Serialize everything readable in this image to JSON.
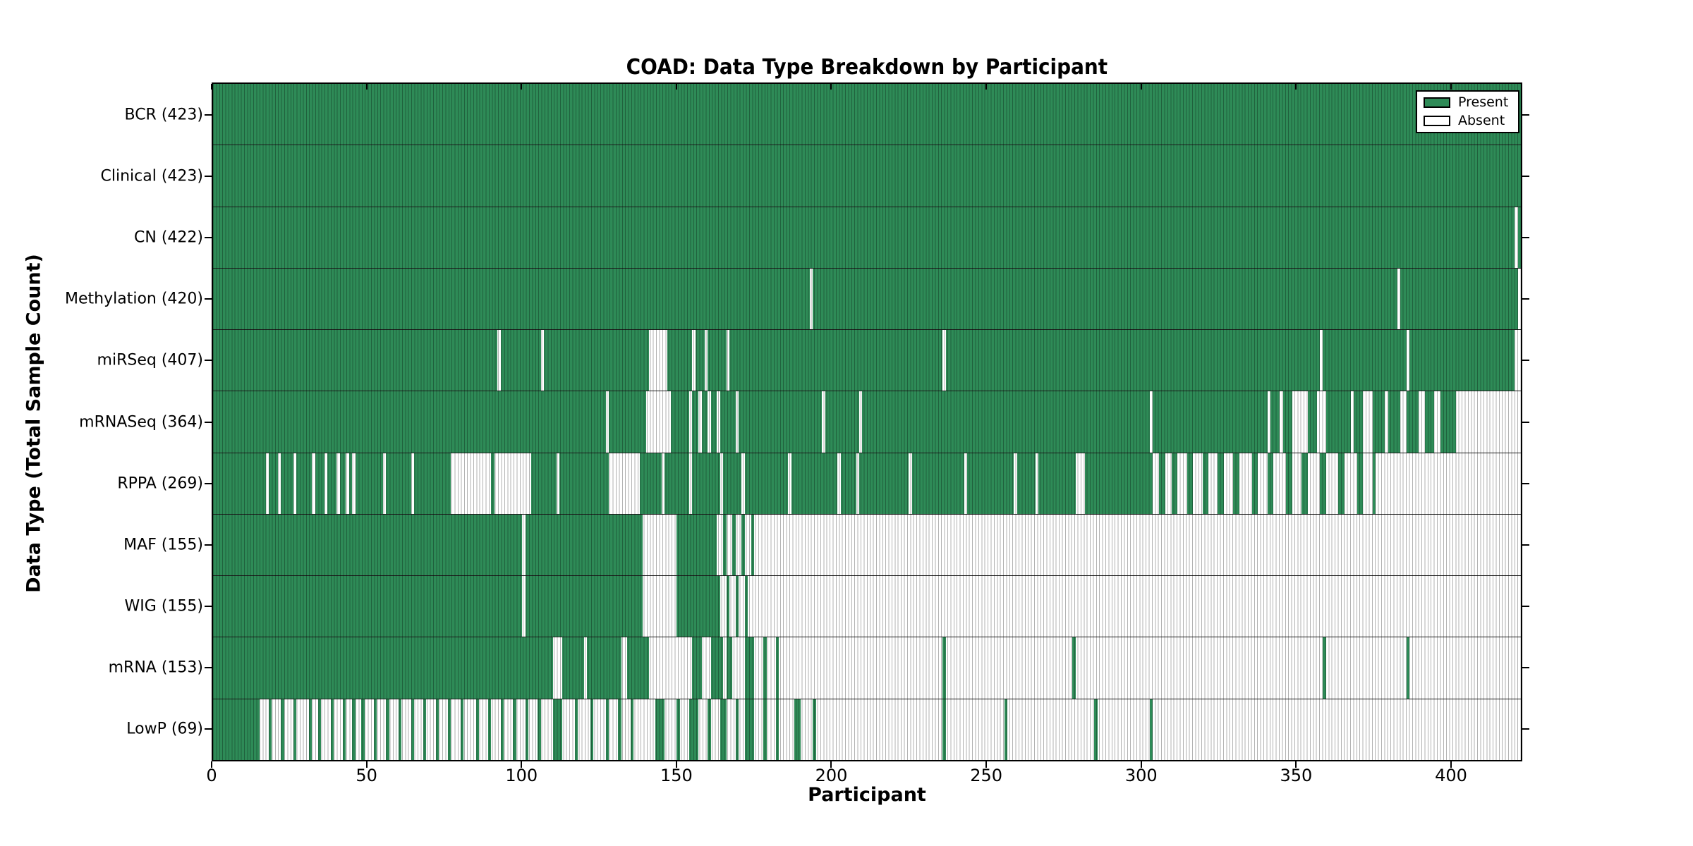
{
  "figure": {
    "background": "#ffffff",
    "present_color": "#2E8B57",
    "absent_color": "#ffffff",
    "edge_line_color": "rgba(0,0,0,0.30)"
  },
  "legend": {
    "present_label": "Present",
    "absent_label": "Absent"
  },
  "chart_data": {
    "type": "heatmap",
    "title": "COAD: Data Type Breakdown by Participant",
    "xlabel": "Participant",
    "ylabel": "Data Type (Total Sample Count)",
    "x_range": [
      0,
      423
    ],
    "x_ticks": [
      0,
      50,
      100,
      150,
      200,
      250,
      300,
      350,
      400
    ],
    "grid": false,
    "legend_position": "upper right",
    "legend_entries": [
      {
        "label": "Present",
        "color": "#2E8B57"
      },
      {
        "label": "Absent",
        "color": "#ffffff"
      }
    ],
    "value_encoding": "present_ranges are [start,end) participant index intervals shown as green (Present); all other participants in the row are white (Absent)",
    "rows": [
      {
        "label": "BCR (423)",
        "data_type": "BCR",
        "count": 423,
        "present_ranges": [
          [
            0,
            423
          ]
        ]
      },
      {
        "label": "Clinical (423)",
        "data_type": "Clinical",
        "count": 423,
        "present_ranges": [
          [
            0,
            423
          ]
        ]
      },
      {
        "label": "CN (422)",
        "data_type": "CN",
        "count": 422,
        "present_ranges": [
          [
            0,
            421
          ],
          [
            422,
            423
          ]
        ]
      },
      {
        "label": "Methylation (420)",
        "data_type": "Methylation",
        "count": 420,
        "present_ranges": [
          [
            0,
            193
          ],
          [
            194,
            383
          ],
          [
            384,
            422
          ]
        ]
      },
      {
        "label": "miRSeq (407)",
        "data_type": "miRSeq",
        "count": 407,
        "present_ranges": [
          [
            0,
            92
          ],
          [
            93,
            106
          ],
          [
            107,
            141
          ],
          [
            147,
            155
          ],
          [
            156,
            159
          ],
          [
            160,
            166
          ],
          [
            167,
            236
          ],
          [
            237,
            358
          ],
          [
            359,
            386
          ],
          [
            387,
            421
          ]
        ]
      },
      {
        "label": "mRNASeq (364)",
        "data_type": "mRNASeq",
        "count": 364,
        "present_ranges": [
          [
            0,
            127
          ],
          [
            128,
            140
          ],
          [
            148,
            154
          ],
          [
            155,
            157
          ],
          [
            158,
            160
          ],
          [
            161,
            163
          ],
          [
            164,
            169
          ],
          [
            170,
            197
          ],
          [
            198,
            209
          ],
          [
            210,
            303
          ],
          [
            304,
            341
          ],
          [
            342,
            345
          ],
          [
            346,
            349
          ],
          [
            354,
            357
          ],
          [
            360,
            368
          ],
          [
            369,
            372
          ],
          [
            375,
            379
          ],
          [
            380,
            384
          ],
          [
            386,
            390
          ],
          [
            392,
            395
          ],
          [
            397,
            402
          ]
        ]
      },
      {
        "label": "RPPA (269)",
        "data_type": "RPPA",
        "count": 269,
        "present_ranges": [
          [
            0,
            17
          ],
          [
            18,
            21
          ],
          [
            22,
            26
          ],
          [
            27,
            32
          ],
          [
            33,
            36
          ],
          [
            37,
            40
          ],
          [
            41,
            43
          ],
          [
            44,
            45
          ],
          [
            46,
            55
          ],
          [
            56,
            64
          ],
          [
            65,
            77
          ],
          [
            90,
            91
          ],
          [
            103,
            111
          ],
          [
            112,
            128
          ],
          [
            138,
            145
          ],
          [
            146,
            154
          ],
          [
            155,
            164
          ],
          [
            165,
            171
          ],
          [
            172,
            186
          ],
          [
            187,
            202
          ],
          [
            203,
            208
          ],
          [
            209,
            225
          ],
          [
            226,
            243
          ],
          [
            244,
            259
          ],
          [
            260,
            266
          ],
          [
            267,
            279
          ],
          [
            282,
            304
          ],
          [
            306,
            308
          ],
          [
            310,
            312
          ],
          [
            315,
            317
          ],
          [
            320,
            322
          ],
          [
            325,
            327
          ],
          [
            330,
            332
          ],
          [
            336,
            338
          ],
          [
            341,
            343
          ],
          [
            347,
            349
          ],
          [
            352,
            354
          ],
          [
            358,
            360
          ],
          [
            364,
            366
          ],
          [
            370,
            372
          ],
          [
            375,
            376
          ]
        ]
      },
      {
        "label": "MAF (155)",
        "data_type": "MAF",
        "count": 155,
        "present_ranges": [
          [
            0,
            100
          ],
          [
            101,
            139
          ],
          [
            150,
            163
          ],
          [
            165,
            166
          ],
          [
            168,
            169
          ],
          [
            171,
            172
          ],
          [
            174,
            175
          ]
        ]
      },
      {
        "label": "WIG (155)",
        "data_type": "WIG",
        "count": 155,
        "present_ranges": [
          [
            0,
            100
          ],
          [
            101,
            139
          ],
          [
            150,
            164
          ],
          [
            166,
            167
          ],
          [
            169,
            170
          ],
          [
            172,
            173
          ]
        ]
      },
      {
        "label": "mRNA (153)",
        "data_type": "mRNA",
        "count": 153,
        "present_ranges": [
          [
            0,
            110
          ],
          [
            113,
            120
          ],
          [
            121,
            132
          ],
          [
            134,
            141
          ],
          [
            155,
            158
          ],
          [
            161,
            165
          ],
          [
            166,
            168
          ],
          [
            172,
            175
          ],
          [
            178,
            179
          ],
          [
            182,
            183
          ],
          [
            236,
            237
          ],
          [
            278,
            279
          ],
          [
            359,
            360
          ],
          [
            386,
            387
          ]
        ]
      },
      {
        "label": "LowP (69)",
        "data_type": "LowP",
        "count": 69,
        "present_ranges": [
          [
            0,
            15
          ],
          [
            18,
            19
          ],
          [
            22,
            23
          ],
          [
            26,
            27
          ],
          [
            31,
            32
          ],
          [
            34,
            35
          ],
          [
            38,
            39
          ],
          [
            42,
            43
          ],
          [
            45,
            46
          ],
          [
            48,
            49
          ],
          [
            52,
            53
          ],
          [
            56,
            57
          ],
          [
            60,
            61
          ],
          [
            64,
            65
          ],
          [
            68,
            69
          ],
          [
            72,
            73
          ],
          [
            76,
            77
          ],
          [
            80,
            81
          ],
          [
            85,
            86
          ],
          [
            89,
            90
          ],
          [
            93,
            94
          ],
          [
            97,
            98
          ],
          [
            101,
            102
          ],
          [
            105,
            106
          ],
          [
            110,
            113
          ],
          [
            117,
            118
          ],
          [
            122,
            123
          ],
          [
            127,
            128
          ],
          [
            131,
            132
          ],
          [
            135,
            136
          ],
          [
            143,
            146
          ],
          [
            150,
            151
          ],
          [
            154,
            157
          ],
          [
            160,
            161
          ],
          [
            164,
            166
          ],
          [
            169,
            170
          ],
          [
            172,
            175
          ],
          [
            178,
            179
          ],
          [
            182,
            183
          ],
          [
            188,
            190
          ],
          [
            194,
            195
          ],
          [
            236,
            237
          ],
          [
            256,
            257
          ],
          [
            285,
            286
          ],
          [
            303,
            304
          ]
        ]
      }
    ]
  }
}
